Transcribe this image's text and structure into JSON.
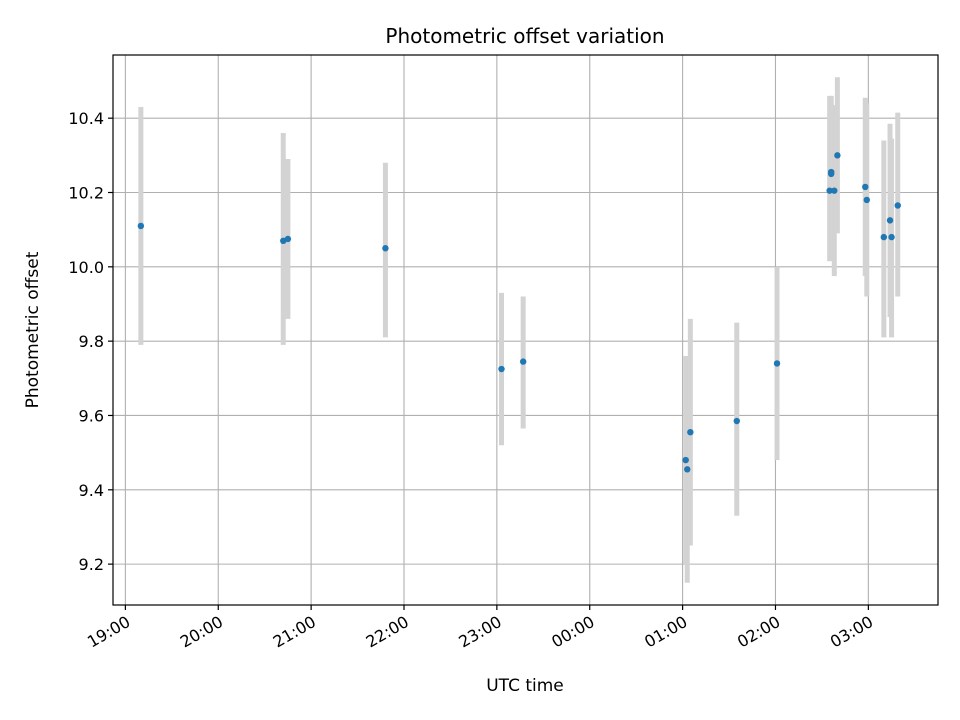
{
  "chart_data": {
    "type": "scatter",
    "title": "Photometric offset variation",
    "xlabel": "UTC time",
    "ylabel": "Photometric offset",
    "x_unit": "UTC time (hours past 00:00 on first day)",
    "xlim": [
      "18:52",
      "03:45 (+1 day)"
    ],
    "ylim": [
      9.09,
      10.57
    ],
    "x_ticks": [
      "19:00",
      "20:00",
      "21:00",
      "22:00",
      "23:00",
      "00:00",
      "01:00",
      "02:00",
      "03:00"
    ],
    "y_ticks": [
      "9.2",
      "9.4",
      "9.6",
      "9.8",
      "10.0",
      "10.2",
      "10.4"
    ],
    "grid": true,
    "marker_color": "#1f77b4",
    "errorbar_color": "#d3d3d3",
    "points": [
      {
        "t": "19:10",
        "y": 10.11,
        "lo": 9.79,
        "hi": 10.43
      },
      {
        "t": "20:42",
        "y": 10.07,
        "lo": 9.79,
        "hi": 10.36
      },
      {
        "t": "20:45",
        "y": 10.075,
        "lo": 9.86,
        "hi": 10.29
      },
      {
        "t": "21:48",
        "y": 10.05,
        "lo": 9.81,
        "hi": 10.28
      },
      {
        "t": "23:03",
        "y": 9.725,
        "lo": 9.52,
        "hi": 9.93
      },
      {
        "t": "23:17",
        "y": 9.745,
        "lo": 9.565,
        "hi": 9.92
      },
      {
        "t": "01:02",
        "y": 9.48,
        "lo": 9.2,
        "hi": 9.76
      },
      {
        "t": "01:03",
        "y": 9.455,
        "lo": 9.15,
        "hi": 9.76
      },
      {
        "t": "01:05",
        "y": 9.555,
        "lo": 9.25,
        "hi": 9.86
      },
      {
        "t": "01:35",
        "y": 9.585,
        "lo": 9.33,
        "hi": 9.85
      },
      {
        "t": "02:01",
        "y": 9.74,
        "lo": 9.48,
        "hi": 10.0
      },
      {
        "t": "02:35",
        "y": 10.205,
        "lo": 10.015,
        "hi": 10.46
      },
      {
        "t": "02:36",
        "y": 10.25,
        "lo": 10.02,
        "hi": 10.46
      },
      {
        "t": "02:36",
        "y": 10.255,
        "lo": 10.04,
        "hi": 10.44
      },
      {
        "t": "02:38",
        "y": 10.205,
        "lo": 9.975,
        "hi": 10.435
      },
      {
        "t": "02:40",
        "y": 10.3,
        "lo": 10.09,
        "hi": 10.51
      },
      {
        "t": "02:58",
        "y": 10.215,
        "lo": 9.975,
        "hi": 10.455
      },
      {
        "t": "02:59",
        "y": 10.18,
        "lo": 9.92,
        "hi": 10.44
      },
      {
        "t": "03:10",
        "y": 10.08,
        "lo": 9.81,
        "hi": 10.34
      },
      {
        "t": "03:14",
        "y": 10.125,
        "lo": 9.865,
        "hi": 10.385
      },
      {
        "t": "03:15",
        "y": 10.08,
        "lo": 9.81,
        "hi": 10.345
      },
      {
        "t": "03:19",
        "y": 10.165,
        "lo": 9.92,
        "hi": 10.415
      }
    ]
  }
}
